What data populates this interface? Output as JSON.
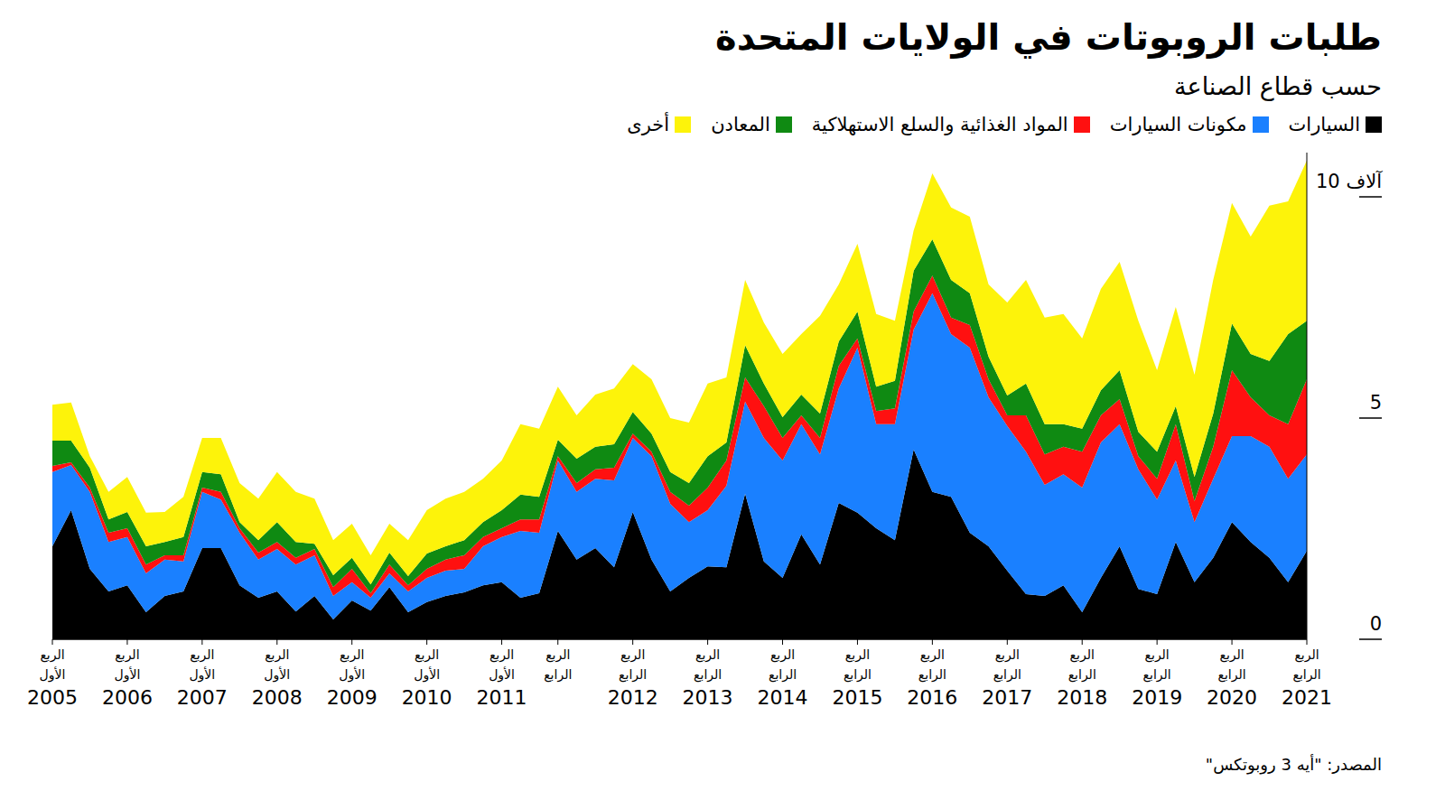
{
  "chart_data": {
    "type": "area",
    "title": "طلبات الروبوتات في الولايات المتحدة",
    "subtitle": "حسب قطاع الصناعة",
    "source": "المصدر: \"أيه 3 روبوتكس\"",
    "stacked": true,
    "legend": "top",
    "grid": false,
    "categories": [
      "الربع الأول 2005",
      null,
      null,
      null,
      "الربع الأول 2006",
      null,
      null,
      null,
      "الربع الأول 2007",
      null,
      null,
      null,
      "الربع الأول 2008",
      null,
      null,
      null,
      "الربع الأول 2009",
      null,
      null,
      null,
      "الربع الأول 2010",
      null,
      null,
      null,
      "الربع الأول 2011",
      null,
      null,
      "الربع الرابع",
      null,
      null,
      null,
      "الربع الرابع 2012",
      null,
      null,
      null,
      "الربع الرابع 2013",
      null,
      null,
      null,
      "الربع الرابع 2014",
      null,
      null,
      null,
      "الربع الرابع 2015",
      null,
      null,
      null,
      "الربع الرابع 2016",
      null,
      null,
      null,
      "الربع الرابع 2017",
      null,
      null,
      null,
      "الربع الرابع 2018",
      null,
      null,
      null,
      "الربع الرابع 2019",
      null,
      null,
      null,
      "الربع الرابع 2020",
      null,
      null,
      null,
      "الربع الرابع 2021"
    ],
    "series": [
      {
        "name": "السيارات",
        "color": "#000000",
        "values": [
          2.1,
          2.92,
          1.59,
          1.08,
          1.22,
          0.61,
          0.98,
          1.08,
          2.06,
          2.06,
          1.22,
          0.94,
          1.08,
          0.63,
          0.98,
          0.45,
          0.88,
          0.65,
          1.18,
          0.61,
          0.84,
          0.98,
          1.06,
          1.22,
          1.29,
          0.94,
          1.04,
          2.45,
          1.8,
          2.06,
          1.63,
          2.88,
          1.8,
          1.08,
          1.39,
          1.65,
          1.63,
          3.29,
          1.76,
          1.39,
          2.37,
          1.69,
          3.08,
          2.86,
          2.51,
          2.24,
          4.29,
          3.33,
          3.22,
          2.41,
          2.1,
          1.55,
          1.02,
          0.98,
          1.22,
          0.61,
          1.39,
          2.1,
          1.14,
          1.02,
          2.2,
          1.29,
          1.84,
          2.65,
          2.2,
          1.84,
          1.29,
          2.0
        ]
      },
      {
        "name": "مكونات السيارات",
        "color": "#1a80ff",
        "values": [
          1.68,
          1.02,
          1.74,
          1.12,
          1.09,
          0.88,
          0.82,
          0.68,
          1.27,
          1.1,
          1.19,
          0.86,
          0.96,
          1.06,
          0.92,
          0.53,
          0.41,
          0.29,
          0.31,
          0.47,
          0.55,
          0.57,
          0.53,
          0.88,
          1.02,
          1.51,
          1.37,
          1.59,
          1.53,
          1.57,
          1.96,
          1.67,
          2.34,
          1.98,
          1.26,
          1.27,
          1.84,
          2.08,
          2.79,
          2.65,
          2.49,
          2.49,
          2.59,
          3.73,
          2.35,
          2.62,
          2.71,
          4.49,
          3.68,
          4.18,
          3.37,
          3.27,
          3.22,
          2.51,
          2.51,
          2.82,
          3.06,
          2.76,
          2.7,
          2.14,
          1.84,
          1.36,
          1.79,
          1.94,
          2.39,
          2.51,
          2.34,
          2.18
        ]
      },
      {
        "name": "المواد الغذائية والسلع الاستهلاكية",
        "color": "#ff1010",
        "values": [
          0.14,
          0.06,
          0.1,
          0.21,
          0.2,
          0.2,
          0.1,
          0.14,
          0.1,
          0.17,
          0.1,
          0.16,
          0.16,
          0.15,
          0.14,
          0.2,
          0.3,
          0.1,
          0.2,
          0.14,
          0.2,
          0.25,
          0.31,
          0.21,
          0.2,
          0.26,
          0.3,
          0.1,
          0.2,
          0.21,
          0.29,
          0.1,
          0.1,
          0.27,
          0.37,
          0.51,
          0.57,
          0.55,
          0.72,
          0.51,
          0.2,
          0.37,
          0.51,
          0.21,
          0.3,
          0.36,
          0.41,
          0.4,
          0.37,
          0.51,
          0.41,
          0.24,
          0.82,
          0.69,
          0.62,
          0.81,
          0.61,
          0.57,
          0.3,
          0.47,
          0.82,
          0.47,
          0.72,
          1.49,
          0.88,
          0.71,
          1.23,
          1.7
        ]
      },
      {
        "name": "المعادن",
        "color": "#0f8a12",
        "values": [
          0.57,
          0.49,
          0.45,
          0.3,
          0.37,
          0.41,
          0.3,
          0.41,
          0.35,
          0.4,
          0.14,
          0.28,
          0.45,
          0.36,
          0.12,
          0.27,
          0.25,
          0.2,
          0.27,
          0.21,
          0.35,
          0.3,
          0.34,
          0.34,
          0.41,
          0.56,
          0.51,
          0.37,
          0.55,
          0.51,
          0.53,
          0.49,
          0.41,
          0.45,
          0.51,
          0.71,
          0.41,
          0.73,
          0.51,
          0.47,
          0.47,
          0.55,
          0.55,
          0.61,
          0.55,
          0.62,
          0.92,
          0.82,
          0.85,
          0.72,
          0.51,
          0.45,
          0.72,
          0.68,
          0.51,
          0.52,
          0.57,
          0.65,
          0.55,
          0.61,
          0.41,
          0.55,
          0.75,
          1.06,
          0.98,
          1.23,
          2.04,
          1.32
        ]
      },
      {
        "name": "أخرى",
        "color": "#fdf30a",
        "values": [
          0.81,
          0.86,
          0.26,
          0.62,
          0.79,
          0.76,
          0.68,
          0.91,
          0.77,
          0.82,
          0.88,
          0.94,
          1.13,
          1.13,
          1.02,
          0.79,
          0.77,
          0.66,
          0.65,
          0.81,
          0.98,
          1.08,
          1.09,
          0.98,
          1.12,
          1.59,
          1.54,
          1.2,
          0.98,
          1.18,
          1.26,
          1.08,
          1.23,
          1.22,
          1.37,
          1.64,
          1.47,
          1.47,
          1.38,
          1.43,
          1.37,
          2.21,
          1.29,
          1.53,
          1.64,
          1.36,
          0.91,
          1.49,
          1.64,
          1.73,
          1.63,
          2.1,
          2.34,
          2.41,
          2.49,
          2.04,
          2.29,
          2.45,
          2.51,
          1.84,
          2.24,
          2.31,
          3.02,
          2.72,
          2.65,
          3.51,
          3.0,
          3.62
        ]
      }
    ],
    "ylim": [
      0,
      11
    ],
    "yticks": [
      0,
      5,
      {
        "value": 10,
        "label": "10 آلاف"
      }
    ]
  }
}
